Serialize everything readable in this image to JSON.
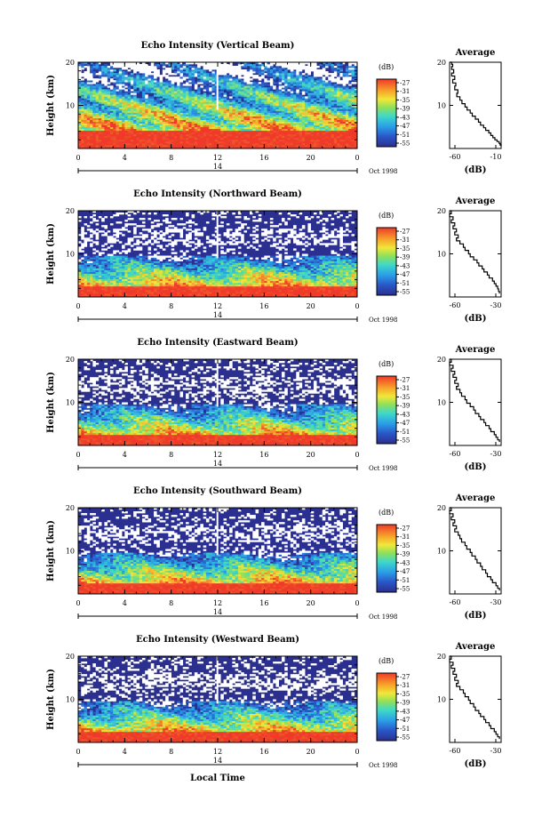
{
  "figure": {
    "xlabel": "Local Time",
    "date_label": "Oct 1998",
    "day_label": "14"
  },
  "chart_data": [
    {
      "type": "heatmap",
      "title": "Echo Intensity (Vertical Beam)",
      "ylabel": "Height (km)",
      "xticks": [
        "0",
        "4",
        "8",
        "12",
        "16",
        "20",
        "0"
      ],
      "yticks": [
        "10",
        "20"
      ],
      "xlim": [
        0,
        24
      ],
      "ylim": [
        0,
        20
      ],
      "colorbar": {
        "title": "(dB)",
        "ticks": [
          "-27",
          "-31",
          "-35",
          "-39",
          "-43",
          "-47",
          "-51",
          "-55"
        ]
      },
      "profile": {
        "title": "Average",
        "xlabel": "(dB)",
        "xticks": [
          "-60",
          "-10"
        ],
        "yticks": [
          "10",
          "20"
        ],
        "xlim": [
          -60,
          -10
        ],
        "ylim": [
          0,
          20
        ],
        "x": [
          -60,
          -58,
          -57,
          -58,
          -56,
          -58,
          -55,
          -57,
          -54,
          -55,
          -52,
          -53,
          -50,
          -48,
          -45,
          -43,
          -40,
          -38,
          -35,
          -32,
          -30,
          -27,
          -25,
          -22,
          -20,
          -18,
          -16,
          -14,
          -12,
          -11,
          -10
        ],
        "y": [
          20,
          19.5,
          19,
          18.3,
          17.5,
          16.8,
          16,
          15.2,
          14.5,
          13.6,
          12.8,
          12,
          11.2,
          10.4,
          9.6,
          8.9,
          8.2,
          7.5,
          6.8,
          6.1,
          5.4,
          4.8,
          4.2,
          3.6,
          3,
          2.5,
          2,
          1.6,
          1.2,
          0.8,
          0.5
        ]
      }
    },
    {
      "type": "heatmap",
      "title": "Echo Intensity (Northward Beam)",
      "ylabel": "Height (km)",
      "xticks": [
        "0",
        "4",
        "8",
        "12",
        "16",
        "20",
        "0"
      ],
      "yticks": [
        "10",
        "20"
      ],
      "xlim": [
        0,
        24
      ],
      "ylim": [
        0,
        20
      ],
      "colorbar": {
        "title": "(dB)",
        "ticks": [
          "-27",
          "-31",
          "-35",
          "-39",
          "-43",
          "-47",
          "-51",
          "-55"
        ]
      },
      "profile": {
        "title": "Average",
        "xlabel": "(dB)",
        "xticks": [
          "-60",
          "-30"
        ],
        "yticks": [
          "10",
          "20"
        ],
        "xlim": [
          -60,
          -30
        ],
        "ylim": [
          0,
          20
        ],
        "x": [
          -60,
          -59,
          -60,
          -58,
          -59,
          -57,
          -58,
          -56,
          -57,
          -55,
          -56,
          -54,
          -52,
          -51,
          -49,
          -48,
          -46,
          -44,
          -43,
          -41,
          -40,
          -38,
          -37,
          -35,
          -34,
          -33,
          -32,
          -31.5,
          -31
        ],
        "y": [
          20,
          19.3,
          18.6,
          17.9,
          17.2,
          16.5,
          15.8,
          15.1,
          14.4,
          13.7,
          13,
          12.3,
          11.5,
          10.8,
          10,
          9.3,
          8.6,
          7.9,
          7.2,
          6.5,
          5.8,
          5.1,
          4.4,
          3.7,
          3.1,
          2.5,
          1.9,
          1.3,
          0.8
        ]
      }
    },
    {
      "type": "heatmap",
      "title": "Echo Intensity (Eastward Beam)",
      "ylabel": "Height (km)",
      "xticks": [
        "0",
        "4",
        "8",
        "12",
        "16",
        "20",
        "0"
      ],
      "yticks": [
        "10",
        "20"
      ],
      "xlim": [
        0,
        24
      ],
      "ylim": [
        0,
        20
      ],
      "colorbar": {
        "title": "(dB)",
        "ticks": [
          "-27",
          "-31",
          "-35",
          "-39",
          "-43",
          "-47",
          "-51",
          "-55"
        ]
      },
      "profile": {
        "title": "Average",
        "xlabel": "(dB)",
        "xticks": [
          "-60",
          "-30"
        ],
        "yticks": [
          "10",
          "20"
        ],
        "xlim": [
          -60,
          -30
        ],
        "ylim": [
          0,
          20
        ],
        "x": [
          -60,
          -59,
          -60,
          -58,
          -59,
          -57,
          -58,
          -56,
          -57,
          -55,
          -56,
          -54,
          -53,
          -51,
          -50,
          -48,
          -46,
          -45,
          -43,
          -42,
          -40,
          -39,
          -37,
          -36,
          -34,
          -33,
          -32,
          -31
        ],
        "y": [
          20,
          19.3,
          18.6,
          17.9,
          17.2,
          16.5,
          15.8,
          15.1,
          14.4,
          13.7,
          13,
          12.2,
          11.4,
          10.6,
          9.8,
          9,
          8.2,
          7.4,
          6.7,
          6,
          5.3,
          4.6,
          3.9,
          3.2,
          2.5,
          1.9,
          1.3,
          0.8
        ]
      }
    },
    {
      "type": "heatmap",
      "title": "Echo Intensity (Southward Beam)",
      "ylabel": "Height (km)",
      "xticks": [
        "0",
        "4",
        "8",
        "12",
        "16",
        "20",
        "0"
      ],
      "yticks": [
        "10",
        "20"
      ],
      "xlim": [
        0,
        24
      ],
      "ylim": [
        0,
        20
      ],
      "colorbar": {
        "title": "(dB)",
        "ticks": [
          "-27",
          "-31",
          "-35",
          "-39",
          "-43",
          "-47",
          "-51",
          "-55"
        ]
      },
      "profile": {
        "title": "Average",
        "xlabel": "(dB)",
        "xticks": [
          "-60",
          "-30"
        ],
        "yticks": [
          "10",
          "20"
        ],
        "xlim": [
          -60,
          -30
        ],
        "ylim": [
          0,
          20
        ],
        "x": [
          -60,
          -59,
          -60,
          -58,
          -59,
          -57,
          -58,
          -56,
          -57,
          -55,
          -54,
          -53,
          -51,
          -50,
          -48,
          -47,
          -45,
          -44,
          -42,
          -41,
          -39,
          -38,
          -36,
          -35,
          -33,
          -32,
          -31
        ],
        "y": [
          20,
          19.3,
          18.6,
          17.9,
          17.2,
          16.5,
          15.8,
          15.1,
          14.4,
          13.6,
          12.8,
          12,
          11.2,
          10.4,
          9.6,
          8.8,
          8,
          7.2,
          6.4,
          5.6,
          4.8,
          4,
          3.3,
          2.6,
          1.9,
          1.3,
          0.8
        ]
      }
    },
    {
      "type": "heatmap",
      "title": "Echo Intensity (Westward Beam)",
      "ylabel": "Height (km)",
      "xticks": [
        "0",
        "4",
        "8",
        "12",
        "16",
        "20",
        "0"
      ],
      "yticks": [
        "10",
        "20"
      ],
      "xlim": [
        0,
        24
      ],
      "ylim": [
        0,
        20
      ],
      "colorbar": {
        "title": "(dB)",
        "ticks": [
          "-27",
          "-31",
          "-35",
          "-39",
          "-43",
          "-47",
          "-51",
          "-55"
        ]
      },
      "profile": {
        "title": "Average",
        "xlabel": "(dB)",
        "xticks": [
          "-60",
          "-30"
        ],
        "yticks": [
          "10",
          "20"
        ],
        "xlim": [
          -60,
          -30
        ],
        "ylim": [
          0,
          20
        ],
        "x": [
          -60,
          -59,
          -60,
          -58,
          -59,
          -57,
          -58,
          -56,
          -57,
          -55,
          -56,
          -54,
          -52,
          -51,
          -49,
          -48,
          -46,
          -45,
          -43,
          -42,
          -40,
          -39,
          -37,
          -36,
          -34,
          -33,
          -32,
          -31
        ],
        "y": [
          20,
          19.3,
          18.6,
          17.9,
          17.2,
          16.5,
          15.8,
          15.1,
          14.4,
          13.7,
          13,
          12.2,
          11.4,
          10.6,
          9.8,
          9,
          8.2,
          7.4,
          6.7,
          6,
          5.3,
          4.6,
          3.9,
          3.2,
          2.5,
          1.9,
          1.3,
          0.8
        ]
      }
    }
  ]
}
